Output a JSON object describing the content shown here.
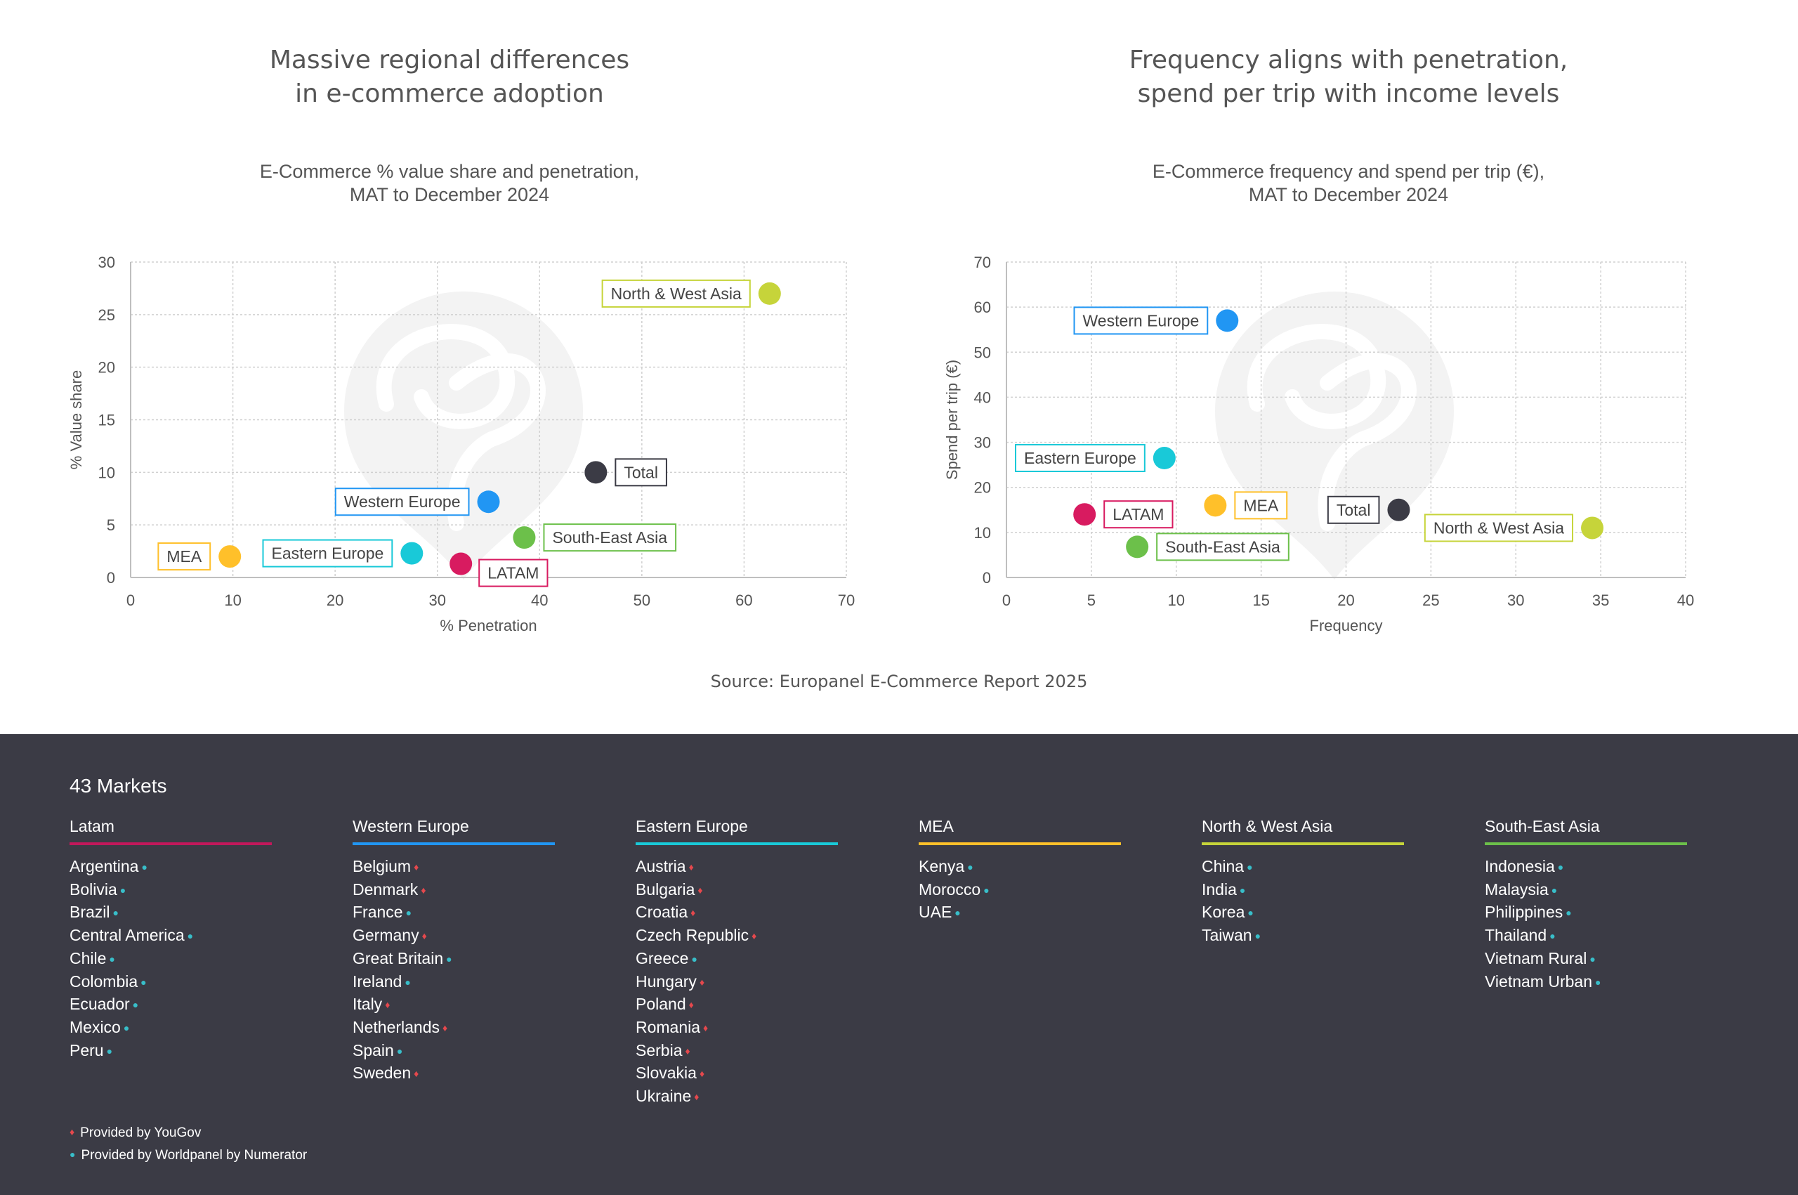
{
  "source": "Source: Europanel E-Commerce Report 2025",
  "panels": [
    {
      "headline": [
        "Massive regional differences",
        "in e-commerce adoption"
      ],
      "subtitle": [
        "E-Commerce % value share and penetration,",
        "MAT to December 2024"
      ]
    },
    {
      "headline": [
        "Frequency aligns with penetration,",
        "spend per trip with income levels"
      ],
      "subtitle": [
        "E-Commerce frequency and spend per trip (€),",
        "MAT to December 2024"
      ]
    }
  ],
  "chart_data": [
    {
      "type": "scatter",
      "title": "E-Commerce % value share and penetration, MAT to December 2024",
      "xlabel": "% Penetration",
      "ylabel": "% Value share",
      "xlim": [
        0,
        70
      ],
      "ylim": [
        0,
        30
      ],
      "xticks": [
        0,
        10,
        20,
        30,
        40,
        50,
        60,
        70
      ],
      "yticks": [
        0,
        5,
        10,
        15,
        20,
        25,
        30
      ],
      "grid": true,
      "points": [
        {
          "label": "North & West Asia",
          "x": 62.5,
          "y": 27,
          "color": "#c6d43a",
          "label_side": "left"
        },
        {
          "label": "Total",
          "x": 45.5,
          "y": 10,
          "color": "#3b3b45",
          "label_side": "right"
        },
        {
          "label": "Western Europe",
          "x": 35,
          "y": 7.2,
          "color": "#2196f3",
          "label_side": "left"
        },
        {
          "label": "South-East Asia",
          "x": 38.5,
          "y": 3.8,
          "color": "#6cc04a",
          "label_side": "right"
        },
        {
          "label": "Eastern Europe",
          "x": 27.5,
          "y": 2.3,
          "color": "#19c9d8",
          "label_side": "left"
        },
        {
          "label": "LATAM",
          "x": 32.3,
          "y": 1.3,
          "color": "#d81b60",
          "label_side": "right-low"
        },
        {
          "label": "MEA",
          "x": 9.7,
          "y": 2,
          "color": "#ffc02a",
          "label_side": "left"
        }
      ]
    },
    {
      "type": "scatter",
      "title": "E-Commerce frequency and spend per trip (€), MAT to December 2024",
      "xlabel": "Frequency",
      "ylabel": "Spend per trip (€)",
      "xlim": [
        0,
        40
      ],
      "ylim": [
        0,
        70
      ],
      "xticks": [
        0,
        5,
        10,
        15,
        20,
        25,
        30,
        35,
        40
      ],
      "yticks": [
        0,
        10,
        20,
        30,
        40,
        50,
        60,
        70
      ],
      "grid": true,
      "points": [
        {
          "label": "Western Europe",
          "x": 13,
          "y": 57,
          "color": "#2196f3",
          "label_side": "left"
        },
        {
          "label": "Eastern Europe",
          "x": 9.3,
          "y": 26.5,
          "color": "#19c9d8",
          "label_side": "left"
        },
        {
          "label": "LATAM",
          "x": 4.6,
          "y": 14,
          "color": "#d81b60",
          "label_side": "right"
        },
        {
          "label": "MEA",
          "x": 12.3,
          "y": 16,
          "color": "#ffc02a",
          "label_side": "right"
        },
        {
          "label": "Total",
          "x": 23.1,
          "y": 15,
          "color": "#3b3b45",
          "label_side": "left"
        },
        {
          "label": "South-East Asia",
          "x": 7.7,
          "y": 6.8,
          "color": "#6cc04a",
          "label_side": "right"
        },
        {
          "label": "North & West Asia",
          "x": 34.5,
          "y": 11,
          "color": "#c6d43a",
          "label_side": "left"
        }
      ]
    }
  ],
  "footer": {
    "title": "43 Markets",
    "regions": [
      {
        "name": "Latam",
        "color": "#c2185b",
        "countries": [
          {
            "name": "Argentina",
            "provider": "numerator"
          },
          {
            "name": "Bolivia",
            "provider": "numerator"
          },
          {
            "name": "Brazil",
            "provider": "numerator"
          },
          {
            "name": "Central America",
            "provider": "numerator"
          },
          {
            "name": "Chile",
            "provider": "numerator"
          },
          {
            "name": "Colombia",
            "provider": "numerator"
          },
          {
            "name": "Ecuador",
            "provider": "numerator"
          },
          {
            "name": "Mexico",
            "provider": "numerator"
          },
          {
            "name": "Peru",
            "provider": "numerator"
          }
        ]
      },
      {
        "name": "Western Europe",
        "color": "#2196f3",
        "countries": [
          {
            "name": "Belgium",
            "provider": "yougov"
          },
          {
            "name": "Denmark",
            "provider": "yougov"
          },
          {
            "name": "France",
            "provider": "numerator"
          },
          {
            "name": "Germany",
            "provider": "yougov"
          },
          {
            "name": "Great Britain",
            "provider": "numerator"
          },
          {
            "name": "Ireland",
            "provider": "numerator"
          },
          {
            "name": "Italy",
            "provider": "yougov"
          },
          {
            "name": "Netherlands",
            "provider": "yougov"
          },
          {
            "name": "Spain",
            "provider": "numerator"
          },
          {
            "name": "Sweden",
            "provider": "yougov"
          }
        ]
      },
      {
        "name": "Eastern Europe",
        "color": "#19c9d8",
        "countries": [
          {
            "name": "Austria",
            "provider": "yougov"
          },
          {
            "name": "Bulgaria",
            "provider": "yougov"
          },
          {
            "name": "Croatia",
            "provider": "yougov"
          },
          {
            "name": "Czech Republic",
            "provider": "yougov"
          },
          {
            "name": "Greece",
            "provider": "numerator"
          },
          {
            "name": "Hungary",
            "provider": "yougov"
          },
          {
            "name": "Poland",
            "provider": "yougov"
          },
          {
            "name": "Romania",
            "provider": "yougov"
          },
          {
            "name": "Serbia",
            "provider": "yougov"
          },
          {
            "name": "Slovakia",
            "provider": "yougov"
          },
          {
            "name": "Ukraine",
            "provider": "yougov"
          }
        ]
      },
      {
        "name": "MEA",
        "color": "#ffc02a",
        "countries": [
          {
            "name": "Kenya",
            "provider": "numerator"
          },
          {
            "name": "Morocco",
            "provider": "numerator"
          },
          {
            "name": "UAE",
            "provider": "numerator"
          }
        ]
      },
      {
        "name": "North & West Asia",
        "color": "#c6d43a",
        "countries": [
          {
            "name": "China",
            "provider": "numerator"
          },
          {
            "name": "India",
            "provider": "numerator"
          },
          {
            "name": "Korea",
            "provider": "numerator"
          },
          {
            "name": "Taiwan",
            "provider": "numerator"
          }
        ]
      },
      {
        "name": "South-East Asia",
        "color": "#6cc04a",
        "countries": [
          {
            "name": "Indonesia",
            "provider": "numerator"
          },
          {
            "name": "Malaysia",
            "provider": "numerator"
          },
          {
            "name": "Philippines",
            "provider": "numerator"
          },
          {
            "name": "Thailand",
            "provider": "numerator"
          },
          {
            "name": "Vietnam Rural",
            "provider": "numerator"
          },
          {
            "name": "Vietnam Urban",
            "provider": "numerator"
          }
        ]
      }
    ],
    "legend": [
      {
        "provider": "yougov",
        "text": "Provided by YouGov"
      },
      {
        "provider": "numerator",
        "text": "Provided by Worldpanel by Numerator"
      }
    ]
  }
}
